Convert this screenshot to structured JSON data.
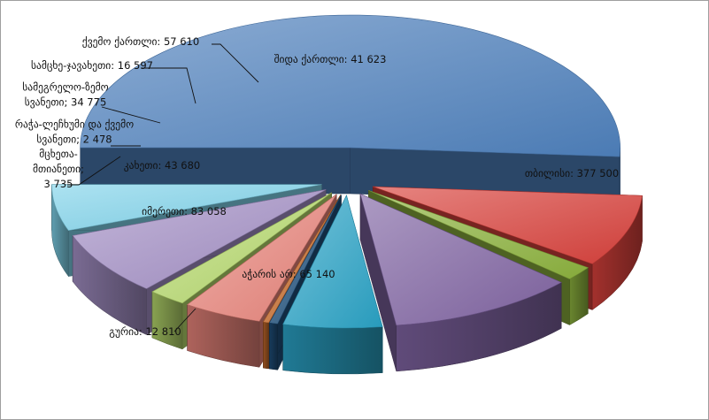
{
  "chart_data": {
    "type": "pie",
    "title": "",
    "exploded": true,
    "three_d": true,
    "legend": "none",
    "label_format": "{name}: {value}",
    "slices": [
      {
        "name": "თბილისი",
        "value": 377500,
        "display": "377 500",
        "color": "#4f81bd"
      },
      {
        "name": "აჭარის არ",
        "value": 65140,
        "display": "65 140",
        "color": "#d9413c"
      },
      {
        "name": "გურია",
        "value": 12810,
        "display": "12 810",
        "color": "#8db33e"
      },
      {
        "name": "იმერეთი",
        "value": 83058,
        "display": "83 058",
        "color": "#8064a2"
      },
      {
        "name": "კახეთი",
        "value": 43680,
        "display": "43 680",
        "color": "#2aa3c6"
      },
      {
        "name": "მცხეთა-მთიანეთი",
        "value": 3735,
        "display": "3 735",
        "color": "#1f4f7a"
      },
      {
        "name": "რაჭა-ლეჩხუმი და ქვემო სვანეთი",
        "value": 2478,
        "display": "2 478",
        "color": "#c4692a"
      },
      {
        "name": "სამეგრელო-ზემო სვანეთი",
        "value": 34775,
        "display": "34 775",
        "color": "#e8847a"
      },
      {
        "name": "სამცხე-ჯავახეთი",
        "value": 16597,
        "display": "16 597",
        "color": "#b5d86c"
      },
      {
        "name": "ქვემო ქართლი",
        "value": 57610,
        "display": "57 610",
        "color": "#a28ec4"
      },
      {
        "name": "შიდა ქართლი",
        "value": 41623,
        "display": "41 623",
        "color": "#7fd3ea"
      }
    ]
  }
}
